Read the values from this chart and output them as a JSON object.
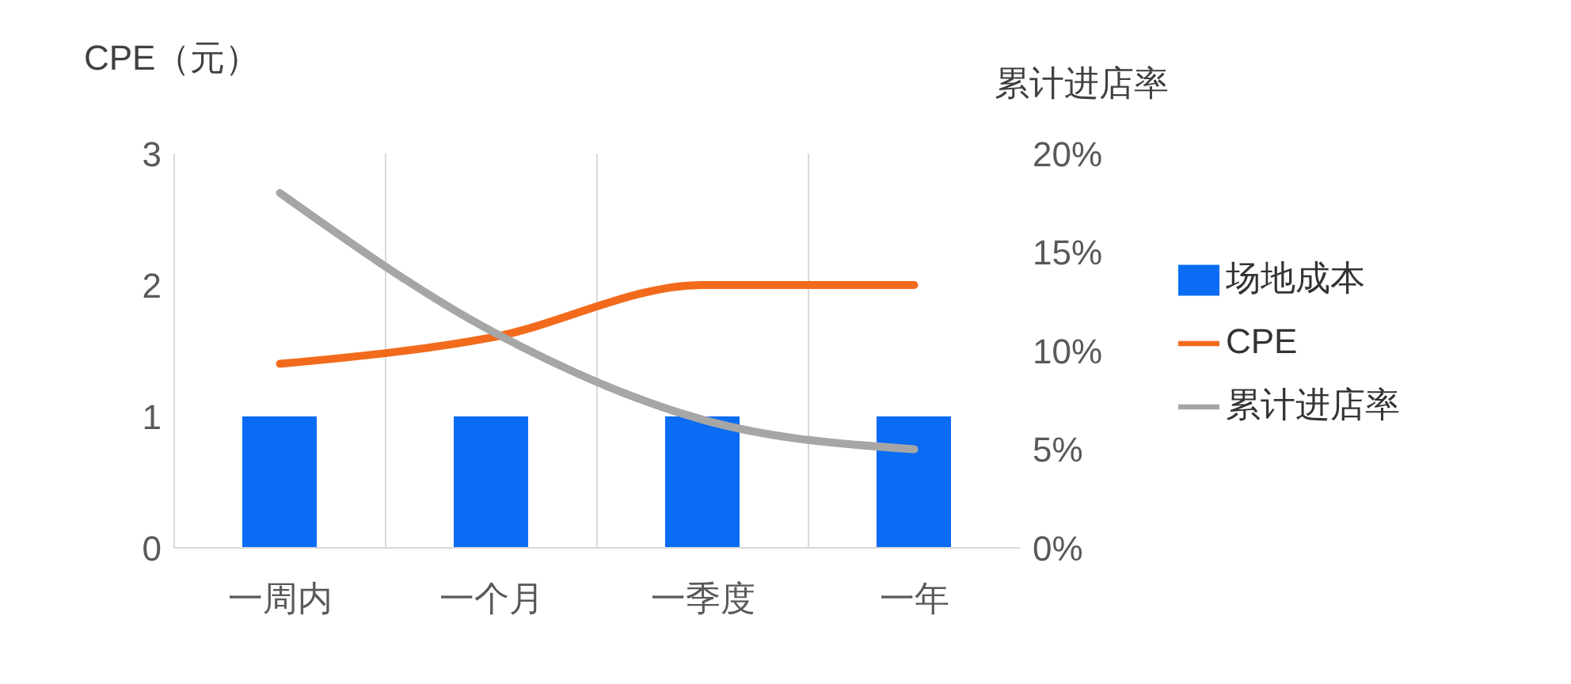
{
  "chart_data": {
    "type": "bar",
    "categories": [
      "一周内",
      "一个月",
      "一季度",
      "一年"
    ],
    "ylabel": "CPE（元）",
    "y2label": "累计进店率",
    "series": [
      {
        "name": "场地成本",
        "color": "#0a6cf5",
        "values": [
          1,
          1,
          1,
          1
        ]
      },
      {
        "name": "CPE",
        "type": "line",
        "color": "#f26b1d",
        "values": [
          1.4,
          1.6,
          2.0,
          2.0
        ]
      },
      {
        "name": "累计进店率",
        "type": "line",
        "axis": "y2",
        "color": "#a6a6a6",
        "values": [
          18,
          11,
          6.5,
          5
        ]
      }
    ],
    "ylim": [
      0,
      3
    ],
    "yticks": [
      0,
      1,
      2,
      3
    ],
    "y2lim": [
      0,
      20
    ],
    "y2ticks": [
      {
        "value": 0,
        "label": "0%"
      },
      {
        "value": 5,
        "label": "5%"
      },
      {
        "value": 10,
        "label": "10%"
      },
      {
        "value": 15,
        "label": "15%"
      },
      {
        "value": 20,
        "label": "20%"
      }
    ],
    "grid": "x",
    "legend": "right",
    "marker": "none"
  }
}
